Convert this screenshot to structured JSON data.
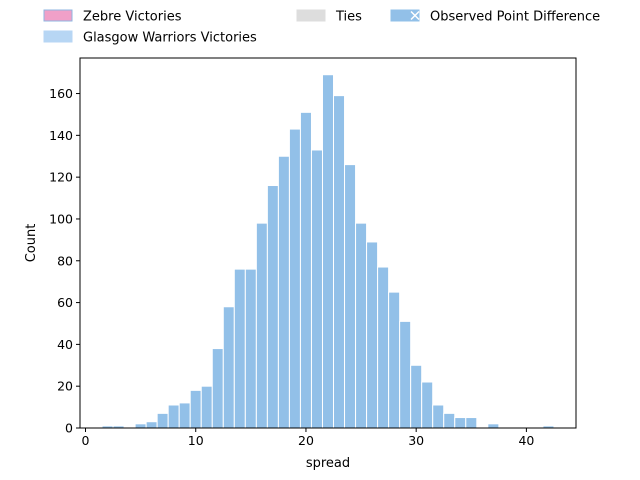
{
  "chart_data": {
    "type": "bar",
    "xlabel": "spread",
    "ylabel": "Count",
    "xlim": [
      -0.5,
      44.5
    ],
    "ylim": [
      0,
      177
    ],
    "x_ticks": [
      0,
      10,
      20,
      30,
      40
    ],
    "y_ticks": [
      0,
      20,
      40,
      60,
      80,
      100,
      120,
      140,
      160
    ],
    "bin_width": 1,
    "bins": [
      {
        "x": 2,
        "count": 1
      },
      {
        "x": 3,
        "count": 1
      },
      {
        "x": 5,
        "count": 2
      },
      {
        "x": 6,
        "count": 3
      },
      {
        "x": 7,
        "count": 7
      },
      {
        "x": 8,
        "count": 11
      },
      {
        "x": 9,
        "count": 12
      },
      {
        "x": 10,
        "count": 18
      },
      {
        "x": 11,
        "count": 20
      },
      {
        "x": 12,
        "count": 38
      },
      {
        "x": 13,
        "count": 58
      },
      {
        "x": 14,
        "count": 76
      },
      {
        "x": 15,
        "count": 76
      },
      {
        "x": 16,
        "count": 98
      },
      {
        "x": 17,
        "count": 116
      },
      {
        "x": 18,
        "count": 130
      },
      {
        "x": 19,
        "count": 143
      },
      {
        "x": 20,
        "count": 151
      },
      {
        "x": 21,
        "count": 133
      },
      {
        "x": 22,
        "count": 169
      },
      {
        "x": 23,
        "count": 159
      },
      {
        "x": 24,
        "count": 126
      },
      {
        "x": 25,
        "count": 98
      },
      {
        "x": 26,
        "count": 89
      },
      {
        "x": 27,
        "count": 77
      },
      {
        "x": 28,
        "count": 65
      },
      {
        "x": 29,
        "count": 51
      },
      {
        "x": 30,
        "count": 30
      },
      {
        "x": 31,
        "count": 22
      },
      {
        "x": 32,
        "count": 11
      },
      {
        "x": 33,
        "count": 7
      },
      {
        "x": 34,
        "count": 5
      },
      {
        "x": 35,
        "count": 5
      },
      {
        "x": 37,
        "count": 2
      },
      {
        "x": 42,
        "count": 1
      }
    ],
    "bar_color": "#92c0e8",
    "legend": {
      "placement": "top",
      "entries": [
        {
          "label": "Zebre Victories",
          "color": "#f0a0c8",
          "edge": "#8fb6e0",
          "marker": "patch"
        },
        {
          "label": "Glasgow Warriors Victories",
          "color": "#b7d6f4",
          "edge": "#b7d6f4",
          "marker": "patch"
        },
        {
          "label": "Ties",
          "color": "#dddddd",
          "edge": "#dddddd",
          "marker": "patch"
        },
        {
          "label": "Observed Point Difference",
          "color": "#92c0e8",
          "edge": "#92c0e8",
          "marker": "patch-x"
        }
      ]
    },
    "grid": false
  }
}
